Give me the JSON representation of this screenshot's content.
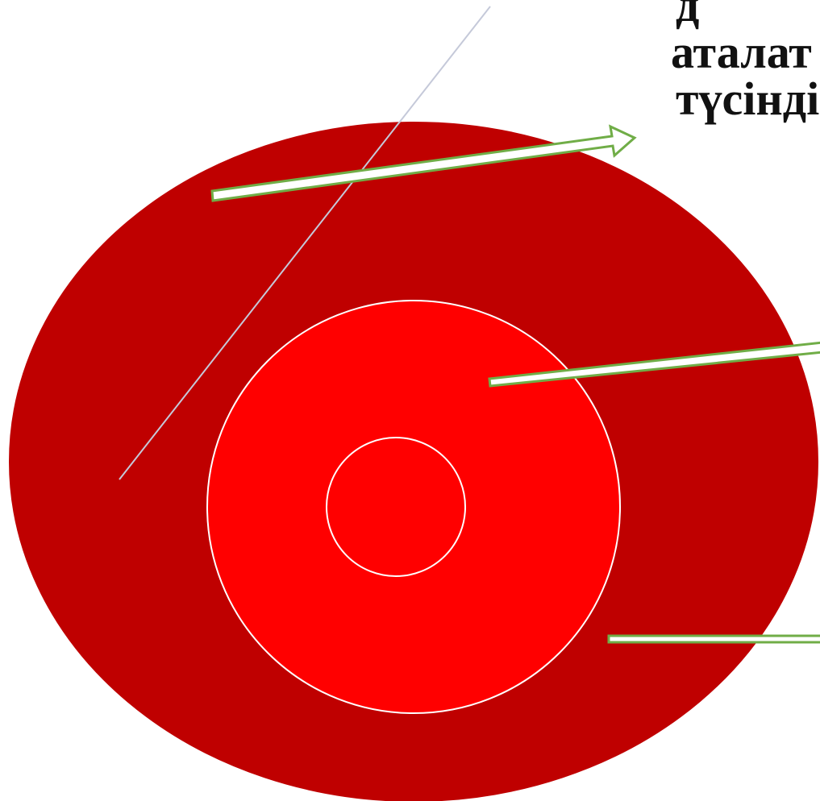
{
  "caption": {
    "line_1": "д",
    "line_2": "аталат",
    "line_3": "түсінді"
  },
  "colors": {
    "background": "#ffffff",
    "outer_ellipse": "#bf0000",
    "inner_circle": "#ff0000",
    "ring_stroke": "#ffffff",
    "arrow_fill": "#ffffff",
    "arrow_stroke": "#70ad47",
    "diagonal_line": "#c5c9d9",
    "caption_text": "#111111"
  }
}
